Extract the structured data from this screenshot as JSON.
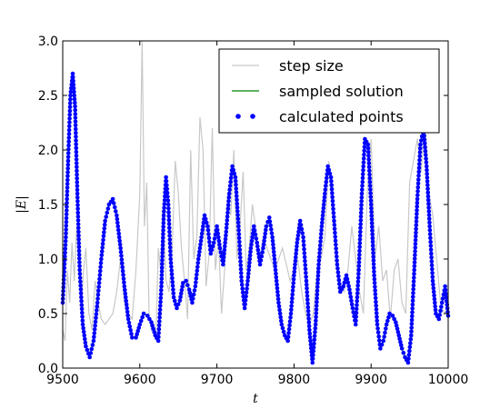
{
  "chart_data": {
    "type": "line",
    "title": "",
    "xlabel": "t",
    "ylabel": "|E|",
    "xlim": [
      9500,
      10000
    ],
    "ylim": [
      0.0,
      3.0
    ],
    "xticks": [
      "9500",
      "9600",
      "9700",
      "9800",
      "9900",
      "10000"
    ],
    "yticks": [
      "0.0",
      "0.5",
      "1.0",
      "1.5",
      "2.0",
      "2.5",
      "3.0"
    ],
    "grid": false,
    "legend_position": "top-right",
    "colors": {
      "step_size": "#c8c8c8",
      "sampled_solution": "#008000",
      "calculated_points": "#0000ff"
    },
    "series": [
      {
        "name": "step size",
        "role": "step",
        "x": [
          9500,
          9503,
          9506,
          9509,
          9512,
          9515,
          9518,
          9521,
          9524,
          9527,
          9530,
          9534,
          9538,
          9542,
          9546,
          9550,
          9555,
          9560,
          9565,
          9570,
          9575,
          9580,
          9585,
          9590,
          9595,
          9600,
          9603,
          9606,
          9609,
          9612,
          9615,
          9618,
          9621,
          9624,
          9627,
          9630,
          9634,
          9638,
          9642,
          9646,
          9650,
          9654,
          9658,
          9662,
          9666,
          9670,
          9674,
          9678,
          9682,
          9686,
          9690,
          9694,
          9698,
          9702,
          9706,
          9710,
          9714,
          9718,
          9722,
          9726,
          9730,
          9734,
          9738,
          9742,
          9746,
          9750,
          9755,
          9760,
          9765,
          9770,
          9775,
          9780,
          9785,
          9790,
          9795,
          9800,
          9805,
          9810,
          9815,
          9820,
          9825,
          9830,
          9835,
          9840,
          9845,
          9850,
          9855,
          9860,
          9865,
          9870,
          9875,
          9880,
          9885,
          9890,
          9895,
          9900,
          9905,
          9910,
          9915,
          9920,
          9925,
          9930,
          9935,
          9940,
          9945,
          9950,
          9955,
          9960,
          9965,
          9970,
          9975,
          9980,
          9985,
          9990,
          9995,
          10000
        ],
        "y": [
          0.35,
          0.25,
          0.9,
          0.6,
          1.15,
          0.8,
          1.3,
          0.95,
          0.55,
          0.9,
          1.1,
          0.5,
          0.35,
          0.8,
          0.6,
          0.45,
          0.4,
          0.45,
          0.5,
          0.7,
          1.0,
          0.6,
          0.5,
          0.45,
          0.9,
          1.6,
          3.0,
          1.3,
          1.7,
          0.5,
          0.35,
          0.4,
          0.3,
          1.1,
          0.9,
          1.5,
          0.8,
          0.7,
          1.1,
          1.9,
          1.6,
          1.1,
          0.8,
          0.45,
          2.0,
          1.0,
          1.2,
          2.3,
          2.0,
          0.75,
          1.05,
          2.2,
          0.9,
          1.2,
          0.5,
          0.9,
          1.6,
          1.4,
          2.0,
          1.0,
          1.3,
          1.8,
          0.9,
          1.1,
          1.5,
          1.3,
          0.95,
          1.2,
          1.1,
          1.0,
          0.9,
          1.0,
          1.1,
          0.95,
          0.8,
          0.9,
          1.0,
          0.7,
          0.5,
          0.4,
          0.5,
          0.9,
          1.0,
          1.2,
          1.9,
          1.4,
          1.1,
          0.75,
          0.7,
          0.9,
          1.3,
          1.0,
          0.7,
          0.5,
          1.6,
          2.1,
          1.0,
          1.3,
          0.8,
          0.9,
          0.45,
          0.9,
          1.0,
          0.6,
          0.5,
          1.7,
          1.9,
          2.1,
          1.8,
          2.3,
          1.6,
          1.4,
          1.0,
          0.6,
          0.5,
          0.55
        ]
      },
      {
        "name": "sampled solution",
        "role": "line",
        "x": [
          9500,
          9504,
          9507,
          9510,
          9513,
          9516,
          9519,
          9522,
          9526,
          9530,
          9535,
          9540,
          9545,
          9550,
          9555,
          9560,
          9565,
          9570,
          9575,
          9580,
          9585,
          9590,
          9595,
          9600,
          9605,
          9610,
          9615,
          9620,
          9624,
          9628,
          9631,
          9634,
          9637,
          9640,
          9644,
          9648,
          9652,
          9656,
          9660,
          9664,
          9668,
          9672,
          9676,
          9680,
          9684,
          9688,
          9692,
          9696,
          9700,
          9704,
          9708,
          9712,
          9716,
          9720,
          9724,
          9728,
          9732,
          9736,
          9740,
          9744,
          9748,
          9752,
          9756,
          9760,
          9764,
          9768,
          9772,
          9776,
          9780,
          9784,
          9788,
          9792,
          9796,
          9800,
          9804,
          9808,
          9812,
          9816,
          9820,
          9824,
          9828,
          9832,
          9836,
          9840,
          9844,
          9848,
          9852,
          9856,
          9860,
          9864,
          9868,
          9872,
          9876,
          9880,
          9884,
          9888,
          9892,
          9896,
          9900,
          9904,
          9908,
          9912,
          9916,
          9920,
          9924,
          9928,
          9932,
          9936,
          9940,
          9944,
          9948,
          9952,
          9956,
          9960,
          9964,
          9968,
          9972,
          9976,
          9980,
          9984,
          9988,
          9992,
          9996,
          10000
        ],
        "y": [
          0.6,
          1.2,
          1.9,
          2.5,
          2.7,
          2.4,
          1.6,
          0.9,
          0.4,
          0.2,
          0.1,
          0.25,
          0.6,
          1.0,
          1.35,
          1.5,
          1.55,
          1.4,
          1.1,
          0.75,
          0.45,
          0.28,
          0.28,
          0.4,
          0.5,
          0.48,
          0.42,
          0.3,
          0.25,
          0.75,
          1.4,
          1.75,
          1.5,
          1.0,
          0.65,
          0.55,
          0.62,
          0.78,
          0.8,
          0.72,
          0.6,
          0.75,
          1.0,
          1.2,
          1.4,
          1.3,
          1.05,
          1.15,
          1.3,
          1.1,
          0.95,
          1.25,
          1.6,
          1.85,
          1.75,
          1.3,
          0.8,
          0.55,
          0.8,
          1.1,
          1.3,
          1.15,
          0.95,
          1.1,
          1.3,
          1.38,
          1.2,
          0.9,
          0.6,
          0.4,
          0.3,
          0.25,
          0.5,
          0.85,
          1.15,
          1.35,
          1.2,
          0.8,
          0.35,
          0.05,
          0.4,
          0.95,
          1.3,
          1.6,
          1.85,
          1.75,
          1.35,
          0.95,
          0.7,
          0.75,
          0.85,
          0.72,
          0.55,
          0.4,
          0.9,
          1.6,
          2.1,
          2.05,
          1.5,
          0.85,
          0.4,
          0.18,
          0.25,
          0.4,
          0.5,
          0.48,
          0.42,
          0.3,
          0.18,
          0.1,
          0.05,
          0.3,
          0.9,
          1.55,
          2.05,
          2.2,
          1.85,
          1.3,
          0.8,
          0.5,
          0.45,
          0.6,
          0.75,
          0.48
        ],
        "note": ""
      },
      {
        "name": "calculated points",
        "role": "points",
        "same_as": "sampled solution"
      }
    ]
  }
}
